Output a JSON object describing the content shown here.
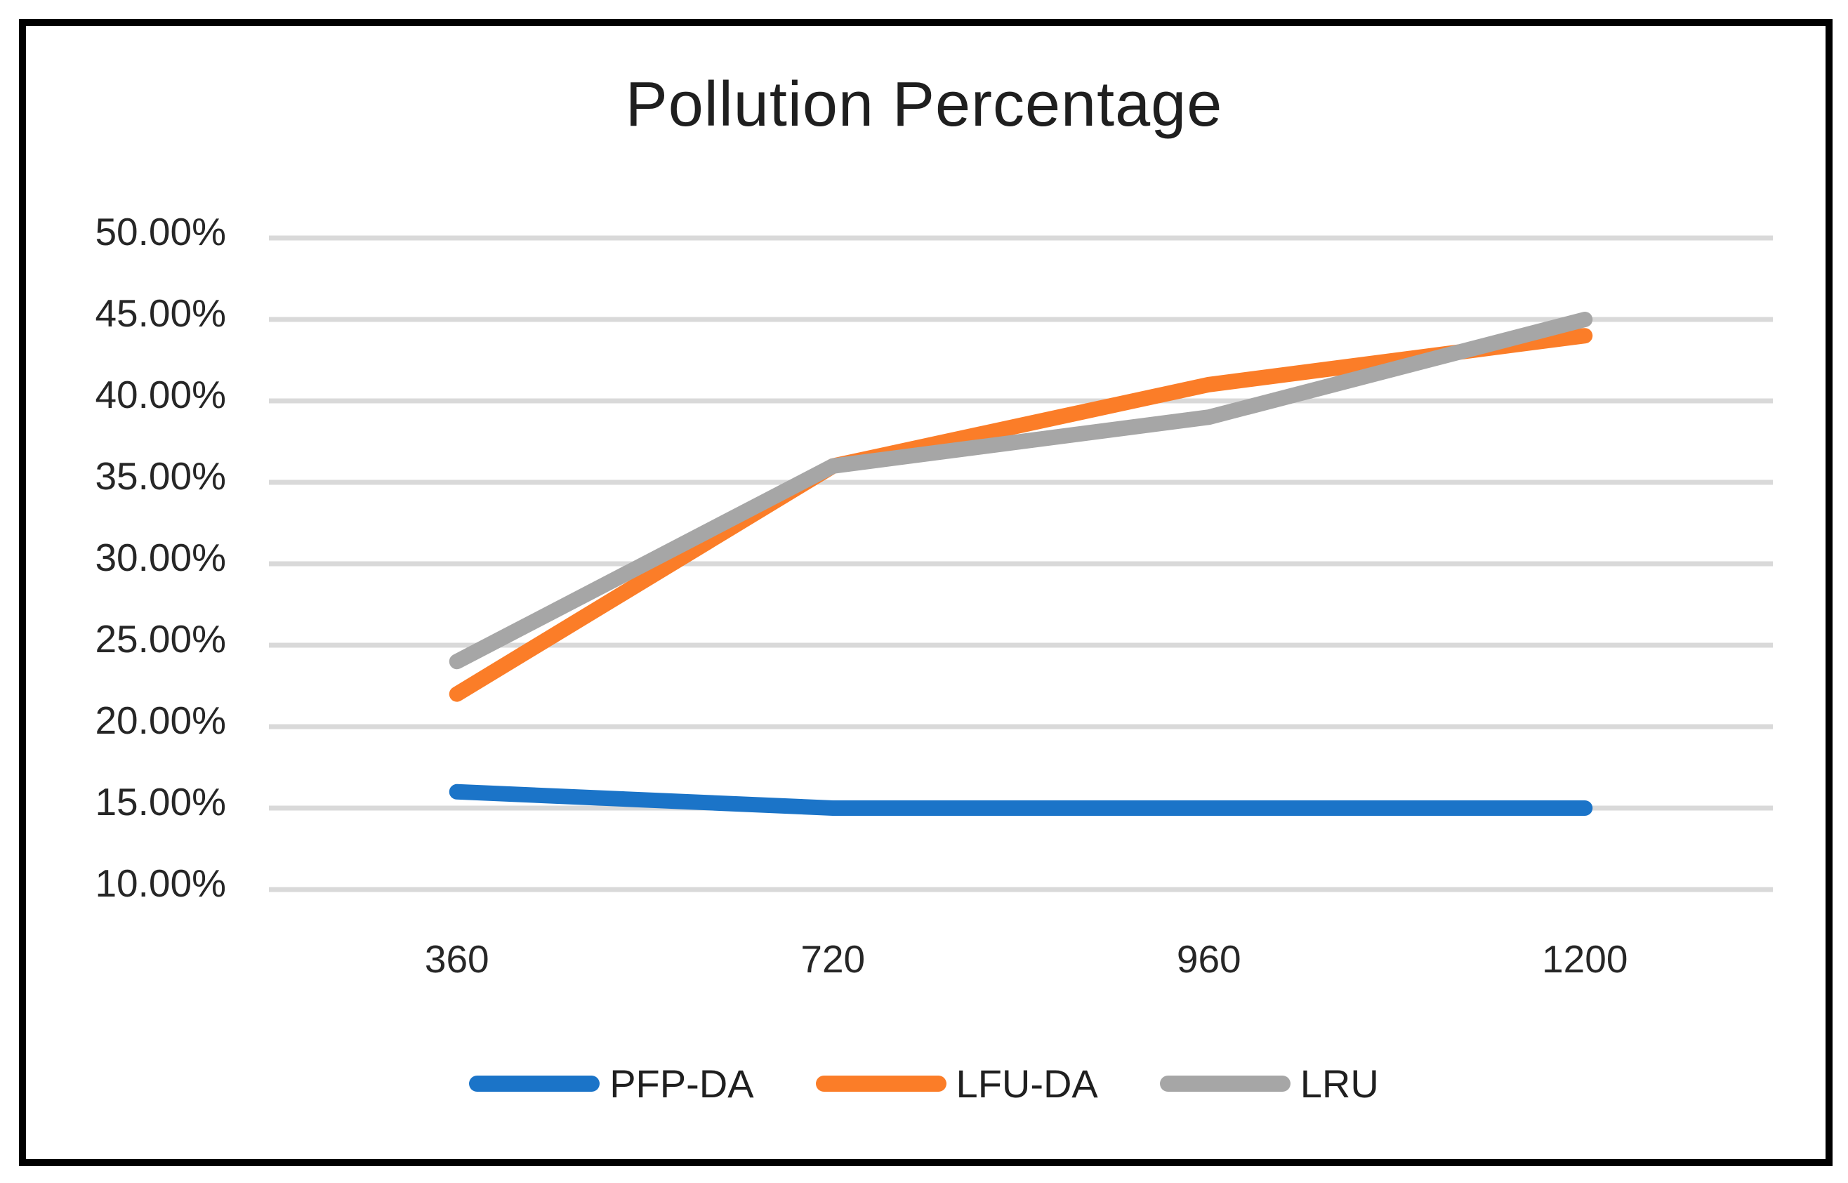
{
  "title": "Pollution Percentage",
  "chart_data": {
    "type": "line",
    "title": "Pollution Percentage",
    "categories": [
      "360",
      "720",
      "960",
      "1200"
    ],
    "series": [
      {
        "name": "PFP-DA",
        "color": "#1B74C8",
        "values": [
          16,
          15,
          15,
          15
        ]
      },
      {
        "name": "LFU-DA",
        "color": "#FB7D28",
        "values": [
          22,
          36,
          41,
          44
        ]
      },
      {
        "name": "LRU",
        "color": "#A6A6A6",
        "values": [
          24,
          36,
          39,
          45
        ]
      }
    ],
    "xlabel": "",
    "ylabel": "",
    "ylim": [
      10,
      50
    ],
    "ytick_step": 5,
    "ytick_labels": [
      "10.00%",
      "15.00%",
      "20.00%",
      "25.00%",
      "30.00%",
      "35.00%",
      "40.00%",
      "45.00%",
      "50.00%"
    ],
    "grid": true,
    "gridline_color": "#D9D9D9",
    "tick_label_color": "#262626",
    "legend_position": "bottom"
  }
}
